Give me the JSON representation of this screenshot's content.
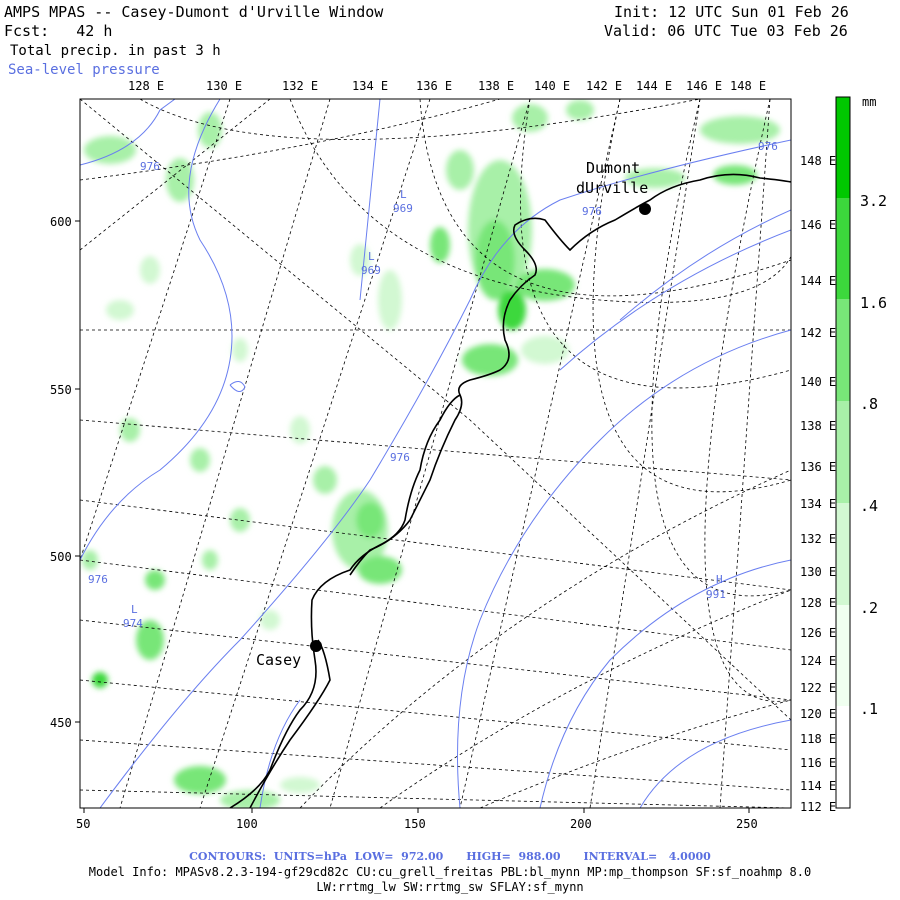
{
  "header": {
    "title": "AMPS MPAS -- Casey-Dumont d'Urville Window",
    "forecast": "Fcst:   42 h",
    "init": "Init: 12 UTC Sun 01 Feb 26",
    "valid": "Valid: 06 UTC Tue 03 Feb 26",
    "field1": "Total precip. in past 3 h",
    "field2": "Sea-level pressure"
  },
  "map": {
    "top_lon_labels": [
      "128 E",
      "130 E",
      "132 E",
      "134 E",
      "136 E",
      "138 E",
      "140 E",
      "142 E",
      "144 E",
      "146 E",
      "148 E"
    ],
    "right_lon_labels": [
      "148 E",
      "146 E",
      "144 E",
      "142 E",
      "140 E",
      "138 E",
      "136 E",
      "134 E",
      "132 E",
      "130 E",
      "128 E",
      "126 E",
      "124 E",
      "122 E",
      "120 E",
      "118 E",
      "116 E",
      "114 E",
      "112 E"
    ],
    "x_ticks": [
      "50",
      "100",
      "150",
      "200",
      "250"
    ],
    "y_ticks": [
      "600",
      "550",
      "500",
      "450"
    ],
    "stations": [
      {
        "name": "Dumont",
        "name2": "dUrville"
      },
      {
        "name": "Casey"
      }
    ],
    "pressure_labels": [
      "976",
      "L",
      "969",
      "L",
      "969",
      "976",
      "976",
      "976",
      "976",
      "L",
      "974",
      "H",
      "991"
    ]
  },
  "colorbar": {
    "unit": "mm",
    "labels": [
      "3.2",
      "1.6",
      ".8",
      ".4",
      ".2",
      ".1"
    ],
    "colors": [
      "#00c800",
      "#3cd83c",
      "#78e678",
      "#a8f0a8",
      "#d2f8d2",
      "#f0fff0"
    ]
  },
  "footer": {
    "contours": "CONTOURS:  UNITS=hPa  LOW=  972.00      HIGH=  988.00      INTERVAL=   4.0000",
    "model_info": "Model Info: MPASv8.2.3-194-gf29cd82c CU:cu_grell_freitas PBL:bl_mynn MP:mp_thompson SF:sf_noahmp 8.0",
    "model_info2": "LW:rrtmg_lw SW:rrtmg_sw SFLAY:sf_mynn"
  }
}
